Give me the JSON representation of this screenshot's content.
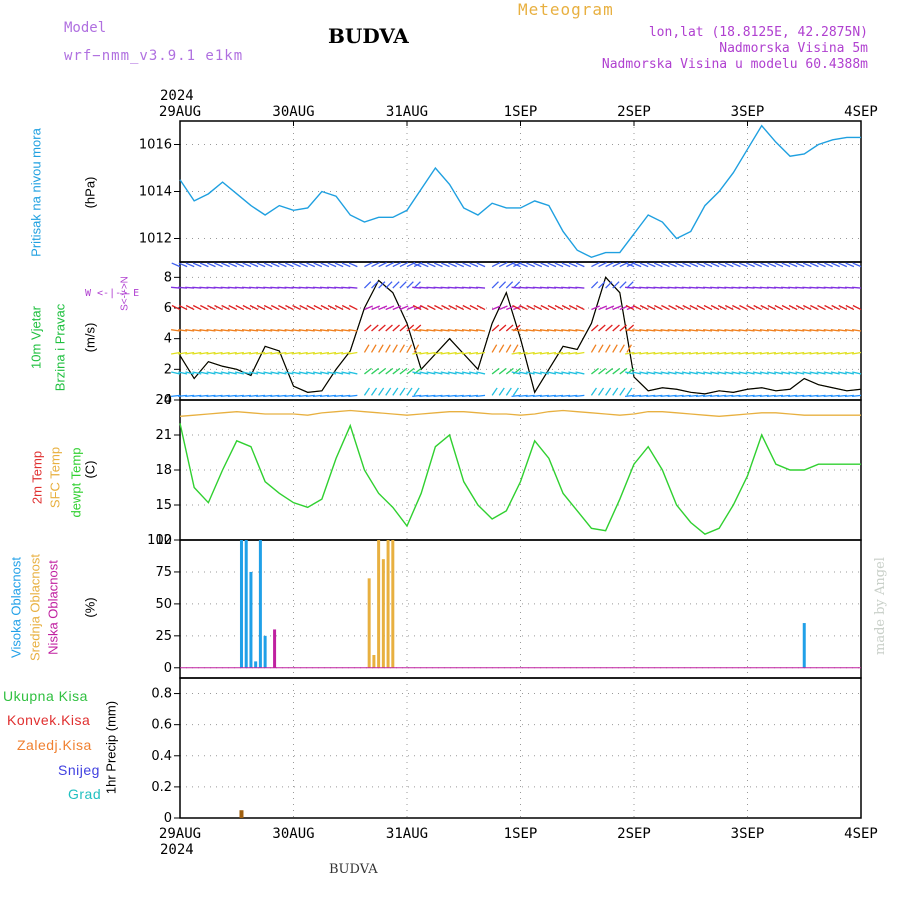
{
  "header": {
    "model_label": "Model",
    "model_version": "wrf−nmm_v3.9.1  e1km",
    "location": "BUDVA",
    "meteogram_label": "Meteogram",
    "lonlat": "lon,lat (18.8125E, 42.2875N)",
    "elevation": "Nadmorska Visina 5m",
    "model_elevation": "Nadmorska Visina u modelu 60.4388m"
  },
  "footer": {
    "location": "BUDVA",
    "credit": "made by Angel"
  },
  "x_axis": {
    "year": "2024",
    "days": [
      "29AUG",
      "30AUG",
      "31AUG",
      "1SEP",
      "2SEP",
      "3SEP",
      "4SEP"
    ]
  },
  "colors": {
    "pressure": "#1fa0e0",
    "temp": "#30d030",
    "sfc_temp": "#e8b040",
    "wind_speed": "#000000",
    "high_cloud": "#20a0e8",
    "mid_cloud": "#e8b040",
    "low_cloud": "#c020a0",
    "precip_total": "#30d030",
    "precip_conv": "#e03030",
    "precip_frozen": "#f08030",
    "snow": "#4040e0",
    "hail": "#20c0c0"
  },
  "panels": {
    "pressure": {
      "label": "Pritisak na nivou mora",
      "unit": "(hPa)",
      "yticks": [
        "1012",
        "1014",
        "1016"
      ]
    },
    "wind": {
      "label1": "10m Vjetar",
      "label2": "Brzina i Pravac",
      "unit": "(m/s)",
      "compass": "W  <-|->  E",
      "compass_ns": "S<-|->N",
      "yticks": [
        "0",
        "2",
        "4",
        "6",
        "8"
      ]
    },
    "temp": {
      "label_2m": "2m Temp",
      "label_sfc": "SFC Temp",
      "label_dewpt": "dewpt Temp",
      "unit": "(C)",
      "yticks": [
        "12",
        "15",
        "18",
        "21",
        "24"
      ]
    },
    "cloud": {
      "label_high": "Visoka Oblacnost",
      "label_mid": "Srednja Oblacnost",
      "label_low": "Niska Oblacnost",
      "unit": "(%)",
      "yticks": [
        "0",
        "25",
        "50",
        "75",
        "100"
      ]
    },
    "precip": {
      "legend": [
        "Ukupna Kisa",
        "Konvek.Kisa",
        "Zaledj.Kisa",
        "Snijeg",
        "Grad"
      ],
      "unit": "1hr Precip (mm)",
      "yticks": [
        "0",
        "0.2",
        "0.4",
        "0.6",
        "0.8"
      ]
    }
  },
  "chart_data": [
    {
      "type": "line",
      "title": "Pritisak na nivou mora",
      "ylabel": "(hPa)",
      "x_hours": [
        0,
        3,
        6,
        9,
        12,
        15,
        18,
        21,
        24,
        27,
        30,
        33,
        36,
        39,
        42,
        45,
        48,
        51,
        54,
        57,
        60,
        63,
        66,
        69,
        72,
        75,
        78,
        81,
        84,
        87,
        90,
        93,
        96,
        99,
        102,
        105,
        108,
        111,
        114,
        117,
        120,
        123,
        126,
        129,
        132,
        135,
        138,
        141,
        144,
        147,
        150,
        153,
        156,
        159,
        162,
        165,
        168
      ],
      "values": [
        1014.5,
        1013.6,
        1013.9,
        1014.4,
        1013.9,
        1013.4,
        1013.0,
        1013.4,
        1013.2,
        1013.3,
        1014.0,
        1013.8,
        1013.0,
        1012.7,
        1012.9,
        1012.9,
        1013.2,
        1014.1,
        1015.0,
        1014.3,
        1013.3,
        1013.0,
        1013.5,
        1013.3,
        1013.3,
        1013.6,
        1013.4,
        1012.3,
        1011.5,
        1011.2,
        1011.4,
        1011.4,
        1012.2,
        1013.0,
        1012.7,
        1012.0,
        1012.3,
        1013.4,
        1014.0,
        1014.8,
        1015.8,
        1016.8,
        1016.1,
        1015.5,
        1015.6,
        1016.0,
        1016.2,
        1016.3,
        1016.3,
        1016.3,
        1016.3,
        1016.3,
        1016.3,
        1016.3,
        1016.3,
        1016.3,
        1016.3
      ],
      "ylim": [
        1011,
        1017
      ]
    },
    {
      "type": "line",
      "title": "10m Vjetar Brzina i Pravac",
      "ylabel": "(m/s)",
      "x_hours": [
        0,
        3,
        6,
        9,
        12,
        15,
        18,
        21,
        24,
        27,
        30,
        33,
        36,
        39,
        42,
        45,
        48,
        51,
        54,
        57,
        60,
        63,
        66,
        69,
        72,
        75,
        78,
        81,
        84,
        87,
        90,
        93,
        96,
        99,
        102,
        105,
        108,
        111,
        114,
        117,
        120,
        123,
        126,
        129,
        132,
        135,
        138,
        141,
        144,
        147,
        150,
        153,
        156,
        159,
        162,
        165,
        168
      ],
      "series": [
        {
          "name": "speed",
          "values": [
            2.9,
            1.4,
            2.5,
            2.2,
            2.0,
            1.6,
            3.5,
            3.2,
            0.9,
            0.5,
            0.6,
            2.0,
            3.2,
            6.0,
            7.8,
            7.0,
            5.0,
            2.0,
            3.0,
            4.0,
            3.0,
            2.0,
            5.0,
            7.0,
            4.0,
            0.5,
            2.0,
            3.5,
            3.3,
            5.0,
            8.0,
            7.0,
            1.5,
            0.6,
            0.8,
            0.7,
            0.5,
            0.4,
            0.6,
            0.5,
            0.7,
            0.8,
            0.6,
            0.7,
            1.4,
            1.0,
            0.8,
            0.6,
            0.7,
            0.5,
            0.6,
            0.5,
            0.6,
            0.5,
            0.6,
            0.5,
            0.6
          ]
        }
      ],
      "ylim": [
        0,
        9
      ]
    },
    {
      "type": "line",
      "title": "Temperature",
      "ylabel": "(C)",
      "x_hours": [
        0,
        3,
        6,
        9,
        12,
        15,
        18,
        21,
        24,
        27,
        30,
        33,
        36,
        39,
        42,
        45,
        48,
        51,
        54,
        57,
        60,
        63,
        66,
        69,
        72,
        75,
        78,
        81,
        84,
        87,
        90,
        93,
        96,
        99,
        102,
        105,
        108,
        111,
        114,
        117,
        120,
        123,
        126,
        129,
        132,
        135,
        138,
        141,
        144,
        147,
        150,
        153,
        156,
        159,
        162,
        165,
        168
      ],
      "series": [
        {
          "name": "2m Temp",
          "values": [
            22.0,
            16.5,
            15.2,
            18.0,
            20.5,
            20.0,
            17.0,
            16.0,
            15.2,
            14.8,
            15.5,
            19.0,
            21.8,
            18.0,
            16.0,
            14.8,
            13.2,
            16.0,
            20.0,
            21.0,
            17.0,
            15.0,
            13.8,
            14.5,
            17.0,
            20.5,
            19.0,
            16.0,
            14.5,
            13.0,
            12.8,
            15.5,
            18.5,
            20.0,
            18.0,
            15.0,
            13.5,
            12.5,
            13.0,
            15.0,
            17.5,
            21.0,
            18.5,
            18.0,
            18.0,
            18.5,
            18.5,
            18.5,
            18.5,
            18.5,
            18.5,
            18.5,
            18.5,
            18.5,
            18.5,
            18.5,
            18.5
          ]
        },
        {
          "name": "SFC Temp",
          "values": [
            22.6,
            22.7,
            22.8,
            22.9,
            23.0,
            22.9,
            22.8,
            22.8,
            22.8,
            22.7,
            22.9,
            23.0,
            23.1,
            23.0,
            22.9,
            22.8,
            22.7,
            22.8,
            22.9,
            23.0,
            23.0,
            22.9,
            22.8,
            22.8,
            22.7,
            22.8,
            23.0,
            23.1,
            23.0,
            22.9,
            22.8,
            22.7,
            22.8,
            23.0,
            23.0,
            22.9,
            22.8,
            22.7,
            22.6,
            22.7,
            22.8,
            22.9,
            22.9,
            22.8,
            22.7,
            22.7,
            22.7,
            22.7,
            22.7,
            22.7,
            22.7,
            22.7,
            22.7,
            22.7,
            22.7,
            22.7,
            22.7
          ]
        }
      ],
      "ylim": [
        12,
        24
      ]
    },
    {
      "type": "bar",
      "title": "Oblacnost",
      "ylabel": "(%)",
      "series": [
        {
          "name": "Visoka Oblacnost",
          "x_hours": [
            13,
            14,
            15,
            16,
            17,
            18,
            19
          ],
          "values": [
            100,
            100,
            75,
            5,
            100,
            25,
            0
          ]
        },
        {
          "name": "Srednja Oblacnost",
          "x_hours": [
            40,
            41,
            42,
            43,
            44,
            45
          ],
          "values": [
            70,
            10,
            100,
            85,
            100,
            100
          ]
        },
        {
          "name": "Niska Oblacnost",
          "x_hours": [
            20
          ],
          "values": [
            30
          ]
        }
      ],
      "extra": [
        {
          "series": "Visoka Oblacnost",
          "x_hours": 132,
          "value": 35
        }
      ],
      "ylim": [
        0,
        100
      ]
    },
    {
      "type": "bar",
      "title": "1hr Precip",
      "ylabel": "(mm)",
      "series": [
        {
          "name": "Ukupna Kisa",
          "x_hours": [
            13
          ],
          "values": [
            0.05
          ]
        }
      ],
      "ylim": [
        0,
        0.9
      ]
    }
  ]
}
